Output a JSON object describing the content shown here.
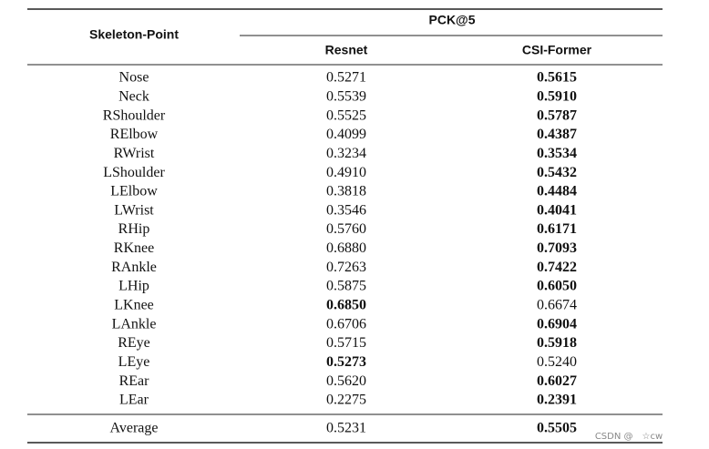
{
  "table": {
    "header": {
      "row_label": "Skeleton-Point",
      "group": "PCK@5",
      "columns": [
        "Resnet",
        "CSI-Former"
      ]
    },
    "rows": [
      {
        "point": "Nose",
        "values": [
          "0.5271",
          "0.5615"
        ],
        "bold": [
          false,
          true
        ]
      },
      {
        "point": "Neck",
        "values": [
          "0.5539",
          "0.5910"
        ],
        "bold": [
          false,
          true
        ]
      },
      {
        "point": "RShoulder",
        "values": [
          "0.5525",
          "0.5787"
        ],
        "bold": [
          false,
          true
        ]
      },
      {
        "point": "RElbow",
        "values": [
          "0.4099",
          "0.4387"
        ],
        "bold": [
          false,
          true
        ]
      },
      {
        "point": "RWrist",
        "values": [
          "0.3234",
          "0.3534"
        ],
        "bold": [
          false,
          true
        ]
      },
      {
        "point": "LShoulder",
        "values": [
          "0.4910",
          "0.5432"
        ],
        "bold": [
          false,
          true
        ]
      },
      {
        "point": "LElbow",
        "values": [
          "0.3818",
          "0.4484"
        ],
        "bold": [
          false,
          true
        ]
      },
      {
        "point": "LWrist",
        "values": [
          "0.3546",
          "0.4041"
        ],
        "bold": [
          false,
          true
        ]
      },
      {
        "point": "RHip",
        "values": [
          "0.5760",
          "0.6171"
        ],
        "bold": [
          false,
          true
        ]
      },
      {
        "point": "RKnee",
        "values": [
          "0.6880",
          "0.7093"
        ],
        "bold": [
          false,
          true
        ]
      },
      {
        "point": "RAnkle",
        "values": [
          "0.7263",
          "0.7422"
        ],
        "bold": [
          false,
          true
        ]
      },
      {
        "point": "LHip",
        "values": [
          "0.5875",
          "0.6050"
        ],
        "bold": [
          false,
          true
        ]
      },
      {
        "point": "LKnee",
        "values": [
          "0.6850",
          "0.6674"
        ],
        "bold": [
          true,
          false
        ]
      },
      {
        "point": "LAnkle",
        "values": [
          "0.6706",
          "0.6904"
        ],
        "bold": [
          false,
          true
        ]
      },
      {
        "point": "REye",
        "values": [
          "0.5715",
          "0.5918"
        ],
        "bold": [
          false,
          true
        ]
      },
      {
        "point": "LEye",
        "values": [
          "0.5273",
          "0.5240"
        ],
        "bold": [
          true,
          false
        ]
      },
      {
        "point": "REar",
        "values": [
          "0.5620",
          "0.6027"
        ],
        "bold": [
          false,
          true
        ]
      },
      {
        "point": "LEar",
        "values": [
          "0.2275",
          "0.2391"
        ],
        "bold": [
          false,
          true
        ]
      }
    ],
    "average": {
      "point": "Average",
      "values": [
        "0.5231",
        "0.5505"
      ],
      "bold": [
        false,
        true
      ]
    }
  },
  "watermark": "CSDN @　☆cw"
}
